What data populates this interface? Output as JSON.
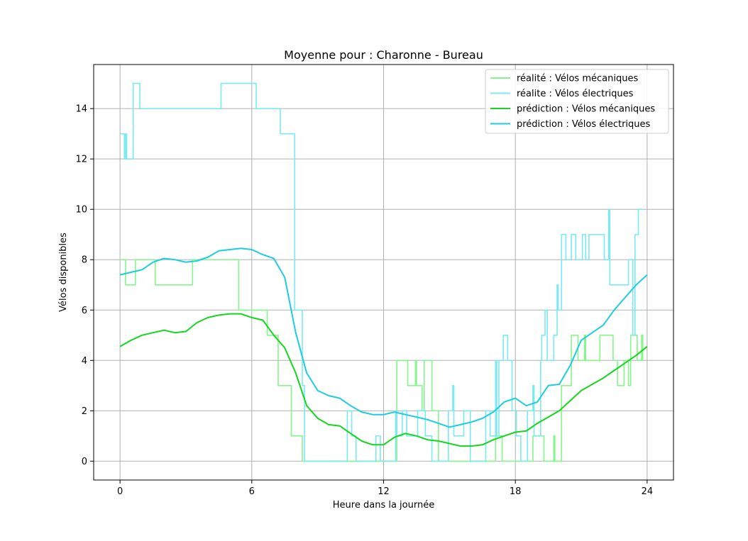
{
  "chart_data": {
    "type": "line",
    "title": "Moyenne pour : Charonne - Bureau",
    "xlabel": "Heure dans la journée",
    "ylabel": "Vélos disponibles",
    "xlim": [
      -1.2,
      25.2
    ],
    "ylim": [
      -0.75,
      15.75
    ],
    "xticks": [
      0,
      6,
      12,
      18,
      24
    ],
    "yticks": [
      0,
      2,
      4,
      6,
      8,
      10,
      12,
      14
    ],
    "grid": true,
    "legend_position": "top-right",
    "series": [
      {
        "name": "réalité : Vélos mécaniques",
        "color": "#86f58c",
        "step": true,
        "points": [
          [
            0,
            8
          ],
          [
            0.15,
            8
          ],
          [
            0.25,
            7
          ],
          [
            0.6,
            7
          ],
          [
            0.7,
            8
          ],
          [
            1.5,
            8
          ],
          [
            1.6,
            7
          ],
          [
            3.2,
            7
          ],
          [
            3.3,
            8
          ],
          [
            5.3,
            8
          ],
          [
            5.4,
            6
          ],
          [
            6.6,
            6
          ],
          [
            6.7,
            5
          ],
          [
            7.1,
            5
          ],
          [
            7.2,
            3
          ],
          [
            7.7,
            3
          ],
          [
            7.8,
            1
          ],
          [
            8.2,
            1
          ],
          [
            8.3,
            0
          ],
          [
            12.5,
            0
          ],
          [
            12.6,
            4
          ],
          [
            13,
            4
          ],
          [
            13.1,
            3
          ],
          [
            13.4,
            3
          ],
          [
            13.45,
            4
          ],
          [
            13.5,
            3
          ],
          [
            13.7,
            3
          ],
          [
            13.75,
            2
          ],
          [
            13.85,
            4
          ],
          [
            14.1,
            4
          ],
          [
            14.2,
            2
          ],
          [
            14.4,
            2
          ],
          [
            14.5,
            0
          ],
          [
            17,
            0
          ],
          [
            17.1,
            1
          ],
          [
            17.3,
            1
          ],
          [
            17.4,
            0
          ],
          [
            18.7,
            0
          ],
          [
            18.8,
            1
          ],
          [
            19.2,
            1
          ],
          [
            19.3,
            0
          ],
          [
            19.7,
            0
          ],
          [
            19.75,
            1
          ],
          [
            19.8,
            0
          ],
          [
            20,
            0
          ],
          [
            20.1,
            3
          ],
          [
            20.5,
            3
          ],
          [
            20.55,
            5
          ],
          [
            20.8,
            5
          ],
          [
            20.85,
            4
          ],
          [
            21.1,
            4
          ],
          [
            21.15,
            5
          ],
          [
            21.2,
            4
          ],
          [
            21.8,
            4
          ],
          [
            21.85,
            5
          ],
          [
            22.4,
            5
          ],
          [
            22.45,
            4
          ],
          [
            22.6,
            4
          ],
          [
            22.65,
            3
          ],
          [
            22.9,
            3
          ],
          [
            22.95,
            4
          ],
          [
            23.1,
            4
          ],
          [
            23.15,
            3
          ],
          [
            23.2,
            3
          ],
          [
            23.25,
            5
          ],
          [
            23.5,
            5
          ],
          [
            23.55,
            4
          ],
          [
            23.7,
            4
          ],
          [
            23.75,
            5
          ],
          [
            23.8,
            4
          ]
        ]
      },
      {
        "name": "réalite : Vélos électriques",
        "color": "#7ae9f2",
        "step": true,
        "points": [
          [
            0,
            13
          ],
          [
            0.15,
            13
          ],
          [
            0.2,
            12
          ],
          [
            0.25,
            13
          ],
          [
            0.3,
            12
          ],
          [
            0.5,
            12
          ],
          [
            0.6,
            15
          ],
          [
            0.8,
            15
          ],
          [
            0.9,
            14
          ],
          [
            4.5,
            14
          ],
          [
            4.6,
            15
          ],
          [
            6.1,
            15
          ],
          [
            6.2,
            14
          ],
          [
            7.2,
            14
          ],
          [
            7.3,
            13
          ],
          [
            7.9,
            13
          ],
          [
            7.95,
            6
          ],
          [
            8.2,
            6
          ],
          [
            8.3,
            3
          ],
          [
            8.4,
            0
          ],
          [
            10.3,
            0
          ],
          [
            10.35,
            2
          ],
          [
            10.5,
            2
          ],
          [
            10.55,
            1
          ],
          [
            10.7,
            1
          ],
          [
            10.75,
            0
          ],
          [
            11.6,
            0
          ],
          [
            11.65,
            1
          ],
          [
            11.8,
            1
          ],
          [
            11.85,
            0
          ],
          [
            12.5,
            0
          ],
          [
            12.55,
            2
          ],
          [
            12.6,
            1
          ],
          [
            12.8,
            1
          ],
          [
            12.85,
            2
          ],
          [
            13,
            2
          ],
          [
            13.05,
            1
          ],
          [
            13.5,
            1
          ],
          [
            13.55,
            2
          ],
          [
            13.8,
            2
          ],
          [
            13.9,
            1
          ],
          [
            14.1,
            1
          ],
          [
            14.2,
            0
          ],
          [
            14.9,
            0
          ],
          [
            14.95,
            2
          ],
          [
            15.1,
            2
          ],
          [
            15.15,
            3
          ],
          [
            15.2,
            1
          ],
          [
            15.6,
            1
          ],
          [
            15.65,
            2
          ],
          [
            15.9,
            2
          ],
          [
            15.95,
            0
          ],
          [
            16.6,
            0
          ],
          [
            16.65,
            2
          ],
          [
            16.8,
            2
          ],
          [
            16.85,
            1
          ],
          [
            17.05,
            1
          ],
          [
            17.1,
            4
          ],
          [
            17.15,
            1
          ],
          [
            17.25,
            4
          ],
          [
            17.4,
            4
          ],
          [
            17.45,
            5
          ],
          [
            17.6,
            5
          ],
          [
            17.65,
            4
          ],
          [
            17.8,
            4
          ],
          [
            17.85,
            2
          ],
          [
            18,
            2
          ],
          [
            18.05,
            1
          ],
          [
            18.2,
            1
          ],
          [
            18.25,
            0
          ],
          [
            18.5,
            0
          ],
          [
            18.55,
            2
          ],
          [
            18.75,
            2
          ],
          [
            18.8,
            3
          ],
          [
            18.85,
            1
          ],
          [
            19.1,
            1
          ],
          [
            19.15,
            4
          ],
          [
            19.2,
            5
          ],
          [
            19.3,
            5
          ],
          [
            19.35,
            6
          ],
          [
            19.45,
            4
          ],
          [
            19.7,
            4
          ],
          [
            19.75,
            5
          ],
          [
            19.85,
            5
          ],
          [
            19.9,
            7
          ],
          [
            19.95,
            6
          ],
          [
            20.05,
            6
          ],
          [
            20.1,
            9
          ],
          [
            20.2,
            9
          ],
          [
            20.3,
            8
          ],
          [
            20.5,
            8
          ],
          [
            20.55,
            9
          ],
          [
            20.7,
            9
          ],
          [
            20.75,
            8
          ],
          [
            21,
            8
          ],
          [
            21.05,
            9
          ],
          [
            21.15,
            9
          ],
          [
            21.2,
            8
          ],
          [
            21.3,
            8
          ],
          [
            21.35,
            9
          ],
          [
            22,
            9
          ],
          [
            22.05,
            8
          ],
          [
            22.2,
            8
          ],
          [
            22.25,
            10
          ],
          [
            22.3,
            7
          ],
          [
            23.1,
            7
          ],
          [
            23.15,
            8
          ],
          [
            23.3,
            8
          ],
          [
            23.35,
            5
          ],
          [
            23.4,
            5
          ],
          [
            23.45,
            9
          ],
          [
            23.55,
            9
          ],
          [
            23.6,
            10
          ],
          [
            23.8,
            10
          ]
        ]
      },
      {
        "name": "prédiction : Vélos mécaniques",
        "color": "#14d61e",
        "step": false,
        "points": [
          [
            0,
            4.55
          ],
          [
            0.5,
            4.8
          ],
          [
            1,
            5
          ],
          [
            1.5,
            5.1
          ],
          [
            2,
            5.2
          ],
          [
            2.5,
            5.1
          ],
          [
            3,
            5.15
          ],
          [
            3.5,
            5.5
          ],
          [
            4,
            5.7
          ],
          [
            4.5,
            5.8
          ],
          [
            5,
            5.85
          ],
          [
            5.5,
            5.85
          ],
          [
            6,
            5.7
          ],
          [
            6.5,
            5.6
          ],
          [
            7,
            5
          ],
          [
            7.5,
            4.5
          ],
          [
            8,
            3.5
          ],
          [
            8.5,
            2.2
          ],
          [
            9,
            1.7
          ],
          [
            9.5,
            1.45
          ],
          [
            10,
            1.4
          ],
          [
            10.5,
            1.1
          ],
          [
            11,
            0.8
          ],
          [
            11.5,
            0.65
          ],
          [
            12,
            0.65
          ],
          [
            12.5,
            0.95
          ],
          [
            13,
            1.1
          ],
          [
            13.5,
            1
          ],
          [
            14,
            0.85
          ],
          [
            14.5,
            0.8
          ],
          [
            15,
            0.7
          ],
          [
            15.5,
            0.6
          ],
          [
            16,
            0.6
          ],
          [
            16.5,
            0.65
          ],
          [
            17,
            0.85
          ],
          [
            17.5,
            1
          ],
          [
            18,
            1.15
          ],
          [
            18.5,
            1.2
          ],
          [
            19,
            1.5
          ],
          [
            19.5,
            1.75
          ],
          [
            20,
            2
          ],
          [
            20.5,
            2.4
          ],
          [
            21,
            2.8
          ],
          [
            21.5,
            3.05
          ],
          [
            22,
            3.3
          ],
          [
            22.5,
            3.6
          ],
          [
            23,
            3.9
          ],
          [
            23.5,
            4.2
          ],
          [
            24,
            4.55
          ]
        ]
      },
      {
        "name": "prédiction : Vélos électriques",
        "color": "#1ccde0",
        "step": false,
        "points": [
          [
            0,
            7.4
          ],
          [
            0.5,
            7.5
          ],
          [
            1,
            7.6
          ],
          [
            1.5,
            7.9
          ],
          [
            2,
            8.05
          ],
          [
            2.5,
            8
          ],
          [
            3,
            7.9
          ],
          [
            3.5,
            7.95
          ],
          [
            4,
            8.1
          ],
          [
            4.5,
            8.35
          ],
          [
            5,
            8.4
          ],
          [
            5.5,
            8.45
          ],
          [
            6,
            8.4
          ],
          [
            6.5,
            8.2
          ],
          [
            7,
            8.05
          ],
          [
            7.5,
            7.3
          ],
          [
            8,
            5.1
          ],
          [
            8.5,
            3.5
          ],
          [
            9,
            2.8
          ],
          [
            9.5,
            2.6
          ],
          [
            10,
            2.5
          ],
          [
            10.5,
            2.2
          ],
          [
            11,
            1.95
          ],
          [
            11.5,
            1.85
          ],
          [
            12,
            1.85
          ],
          [
            12.5,
            1.95
          ],
          [
            13,
            1.85
          ],
          [
            13.5,
            1.75
          ],
          [
            14,
            1.65
          ],
          [
            14.5,
            1.5
          ],
          [
            15,
            1.35
          ],
          [
            15.5,
            1.45
          ],
          [
            16,
            1.55
          ],
          [
            16.5,
            1.7
          ],
          [
            17,
            1.95
          ],
          [
            17.5,
            2.35
          ],
          [
            18,
            2.5
          ],
          [
            18.5,
            2.2
          ],
          [
            19,
            2.35
          ],
          [
            19.5,
            3
          ],
          [
            20,
            3.05
          ],
          [
            20.5,
            3.8
          ],
          [
            21,
            4.8
          ],
          [
            21.5,
            5.1
          ],
          [
            22,
            5.4
          ],
          [
            22.5,
            6
          ],
          [
            23,
            6.5
          ],
          [
            23.5,
            7
          ],
          [
            24,
            7.4
          ]
        ]
      }
    ]
  }
}
